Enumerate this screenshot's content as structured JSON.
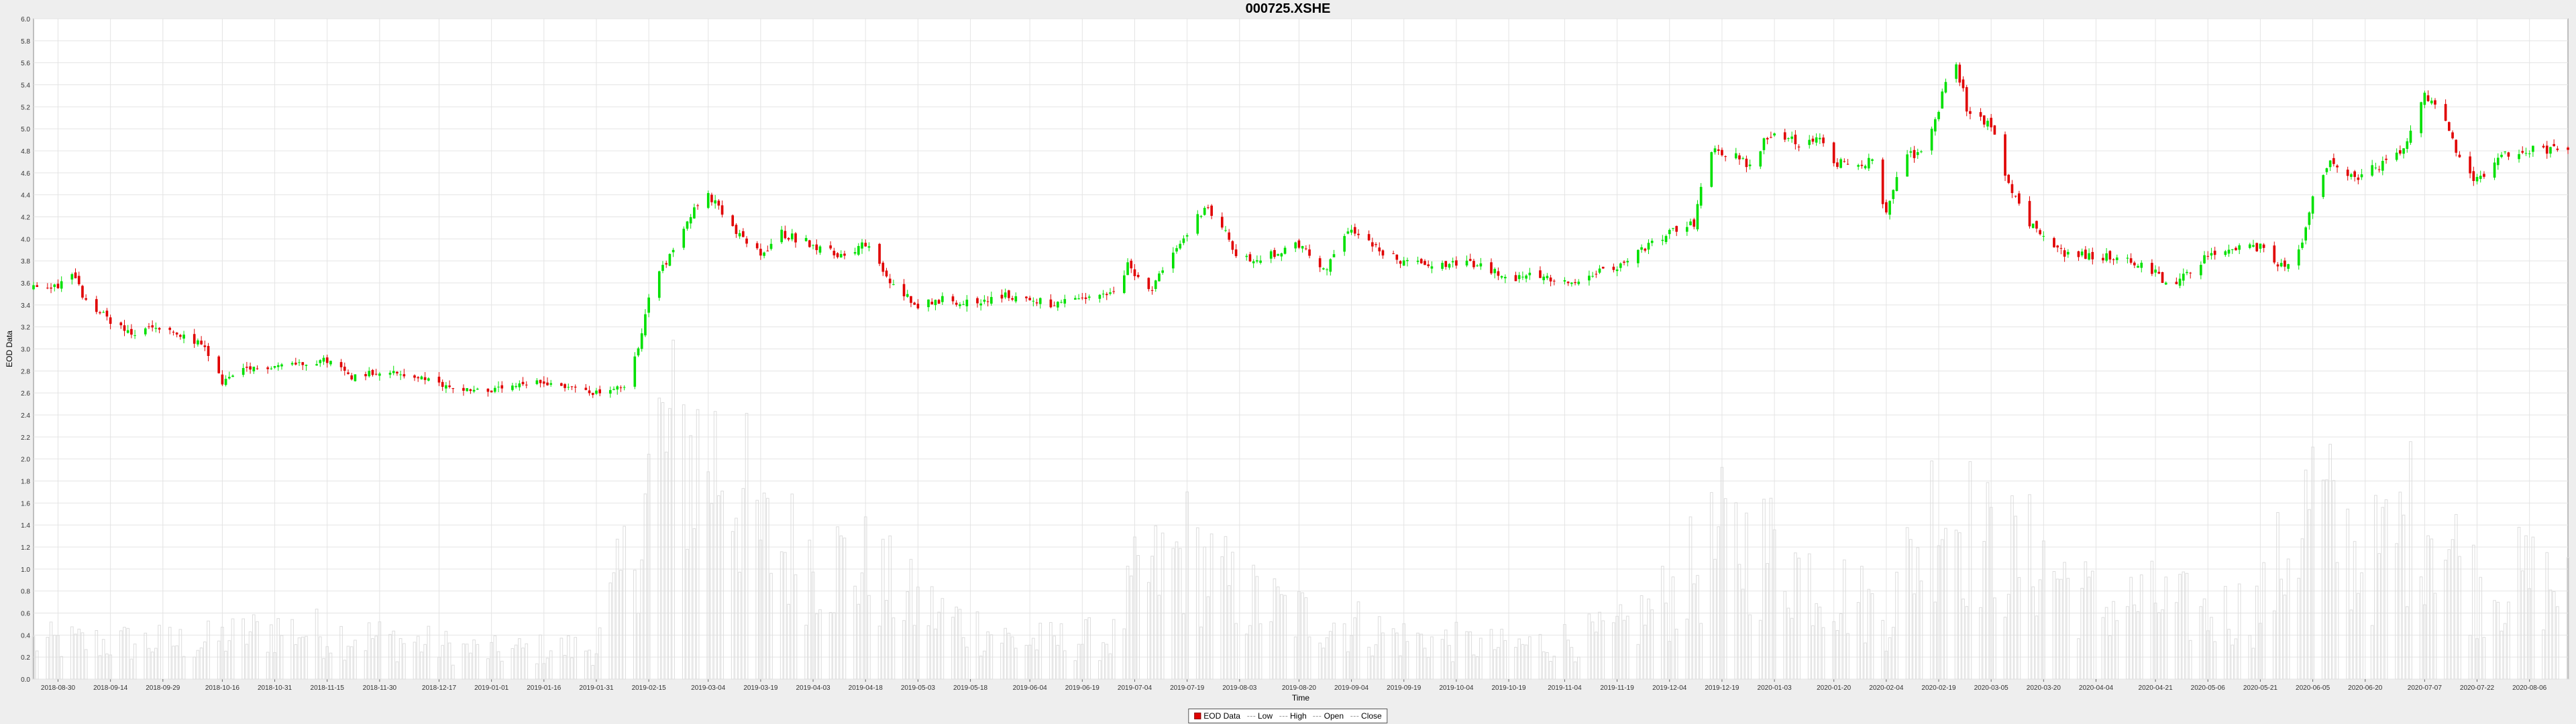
{
  "chart_data": {
    "type": "candlestick",
    "title": "000725.XSHE",
    "xlabel": "Time",
    "ylabel": "EOD Data",
    "ylim": [
      0,
      6.0
    ],
    "yticks": [
      "0.0",
      "0.2",
      "0.4",
      "0.6",
      "0.8",
      "1.0",
      "1.2",
      "1.4",
      "1.6",
      "1.8",
      "2.0",
      "2.2",
      "2.4",
      "2.6",
      "2.8",
      "3.0",
      "3.2",
      "3.4",
      "3.6",
      "3.8",
      "4.0",
      "4.2",
      "4.4",
      "4.6",
      "4.8",
      "5.0",
      "5.2",
      "5.4",
      "5.6",
      "5.8",
      "6.0"
    ],
    "xrange": [
      "2018-08-23",
      "2020-08-17"
    ],
    "xticks": [
      "2018-08-30",
      "2018-09-14",
      "2018-09-29",
      "2018-10-16",
      "2018-10-31",
      "2018-11-15",
      "2018-11-30",
      "2018-12-17",
      "2019-01-01",
      "2019-01-16",
      "2019-01-31",
      "2019-02-15",
      "2019-03-04",
      "2019-03-19",
      "2019-04-03",
      "2019-04-18",
      "2019-05-03",
      "2019-05-18",
      "2019-06-04",
      "2019-06-19",
      "2019-07-04",
      "2019-07-19",
      "2019-08-03",
      "2019-08-20",
      "2019-09-04",
      "2019-09-19",
      "2019-10-04",
      "2019-10-19",
      "2019-11-04",
      "2019-11-19",
      "2019-12-04",
      "2019-12-19",
      "2020-01-03",
      "2020-01-20",
      "2020-02-04",
      "2020-02-19",
      "2020-03-05",
      "2020-03-20",
      "2020-04-04",
      "2020-04-21",
      "2020-05-06",
      "2020-05-21",
      "2020-06-05",
      "2020-06-20",
      "2020-07-07",
      "2020-07-22",
      "2020-08-06"
    ],
    "close_anchors": [
      [
        "2018-08-23",
        3.55
      ],
      [
        "2018-08-30",
        3.58
      ],
      [
        "2018-09-03",
        3.7
      ],
      [
        "2018-09-07",
        3.42
      ],
      [
        "2018-09-14",
        3.26
      ],
      [
        "2018-09-20",
        3.12
      ],
      [
        "2018-09-26",
        3.2
      ],
      [
        "2018-10-10",
        3.05
      ],
      [
        "2018-10-16",
        2.7
      ],
      [
        "2018-10-22",
        2.8
      ],
      [
        "2018-10-31",
        2.85
      ],
      [
        "2018-11-15",
        2.9
      ],
      [
        "2018-11-22",
        2.75
      ],
      [
        "2018-11-30",
        2.8
      ],
      [
        "2018-12-10",
        2.75
      ],
      [
        "2018-12-20",
        2.65
      ],
      [
        "2019-01-01",
        2.62
      ],
      [
        "2019-01-16",
        2.7
      ],
      [
        "2019-01-31",
        2.6
      ],
      [
        "2019-02-08",
        2.65
      ],
      [
        "2019-02-12",
        3.0
      ],
      [
        "2019-02-15",
        3.5
      ],
      [
        "2019-02-21",
        3.85
      ],
      [
        "2019-02-26",
        4.2
      ],
      [
        "2019-03-04",
        4.4
      ],
      [
        "2019-03-12",
        4.05
      ],
      [
        "2019-03-19",
        3.85
      ],
      [
        "2019-03-25",
        4.05
      ],
      [
        "2019-04-03",
        3.95
      ],
      [
        "2019-04-10",
        3.85
      ],
      [
        "2019-04-18",
        3.95
      ],
      [
        "2019-04-25",
        3.6
      ],
      [
        "2019-05-03",
        3.4
      ],
      [
        "2019-05-10",
        3.45
      ],
      [
        "2019-05-18",
        3.42
      ],
      [
        "2019-05-28",
        3.48
      ],
      [
        "2019-06-04",
        3.45
      ],
      [
        "2019-06-11",
        3.4
      ],
      [
        "2019-06-19",
        3.45
      ],
      [
        "2019-06-28",
        3.5
      ],
      [
        "2019-07-02",
        3.75
      ],
      [
        "2019-07-09",
        3.55
      ],
      [
        "2019-07-15",
        3.85
      ],
      [
        "2019-07-19",
        4.05
      ],
      [
        "2019-07-24",
        4.3
      ],
      [
        "2019-07-29",
        4.1
      ],
      [
        "2019-08-03",
        3.8
      ],
      [
        "2019-08-12",
        3.85
      ],
      [
        "2019-08-20",
        3.95
      ],
      [
        "2019-08-27",
        3.7
      ],
      [
        "2019-09-04",
        4.1
      ],
      [
        "2019-09-12",
        3.9
      ],
      [
        "2019-09-19",
        3.78
      ],
      [
        "2019-09-26",
        3.78
      ],
      [
        "2019-10-04",
        3.78
      ],
      [
        "2019-10-12",
        3.75
      ],
      [
        "2019-10-19",
        3.62
      ],
      [
        "2019-10-26",
        3.7
      ],
      [
        "2019-11-04",
        3.6
      ],
      [
        "2019-11-11",
        3.68
      ],
      [
        "2019-11-19",
        3.72
      ],
      [
        "2019-11-26",
        3.9
      ],
      [
        "2019-12-04",
        4.05
      ],
      [
        "2019-12-11",
        4.15
      ],
      [
        "2019-12-15",
        4.8
      ],
      [
        "2019-12-19",
        4.8
      ],
      [
        "2019-12-26",
        4.68
      ],
      [
        "2020-01-03",
        5.0
      ],
      [
        "2020-01-10",
        4.88
      ],
      [
        "2020-01-17",
        4.9
      ],
      [
        "2020-01-20",
        4.7
      ],
      [
        "2020-01-31",
        4.7
      ],
      [
        "2020-02-04",
        4.2
      ],
      [
        "2020-02-08",
        4.7
      ],
      [
        "2020-02-14",
        4.8
      ],
      [
        "2020-02-19",
        5.2
      ],
      [
        "2020-02-23",
        5.75
      ],
      [
        "2020-02-27",
        5.2
      ],
      [
        "2020-03-05",
        5.0
      ],
      [
        "2020-03-10",
        4.5
      ],
      [
        "2020-03-16",
        4.15
      ],
      [
        "2020-03-20",
        4.0
      ],
      [
        "2020-03-27",
        3.85
      ],
      [
        "2020-04-04",
        3.85
      ],
      [
        "2020-04-12",
        3.82
      ],
      [
        "2020-04-21",
        3.7
      ],
      [
        "2020-04-25",
        3.55
      ],
      [
        "2020-05-06",
        3.85
      ],
      [
        "2020-05-13",
        3.9
      ],
      [
        "2020-05-21",
        3.92
      ],
      [
        "2020-05-28",
        3.72
      ],
      [
        "2020-06-02",
        3.95
      ],
      [
        "2020-06-05",
        4.4
      ],
      [
        "2020-06-10",
        4.7
      ],
      [
        "2020-06-16",
        4.55
      ],
      [
        "2020-06-20",
        4.6
      ],
      [
        "2020-06-28",
        4.7
      ],
      [
        "2020-07-02",
        4.85
      ],
      [
        "2020-07-07",
        5.3
      ],
      [
        "2020-07-14",
        5.0
      ],
      [
        "2020-07-18",
        4.6
      ],
      [
        "2020-07-22",
        4.55
      ],
      [
        "2020-07-29",
        4.75
      ],
      [
        "2020-08-06",
        4.8
      ],
      [
        "2020-08-17",
        4.8
      ]
    ],
    "volume_anchors": [
      [
        "2018-08-23",
        0.4
      ],
      [
        "2018-10-10",
        0.4
      ],
      [
        "2018-10-31",
        0.55
      ],
      [
        "2018-11-30",
        0.45
      ],
      [
        "2018-12-31",
        0.3
      ],
      [
        "2019-01-31",
        0.35
      ],
      [
        "2019-02-10",
        1.4
      ],
      [
        "2019-02-18",
        2.55
      ],
      [
        "2019-03-10",
        2.4
      ],
      [
        "2019-03-19",
        1.5
      ],
      [
        "2019-04-18",
        1.2
      ],
      [
        "2019-05-03",
        0.8
      ],
      [
        "2019-06-01",
        0.4
      ],
      [
        "2019-06-28",
        0.45
      ],
      [
        "2019-07-04",
        1.0
      ],
      [
        "2019-07-19",
        1.4
      ],
      [
        "2019-08-03",
        0.9
      ],
      [
        "2019-08-20",
        0.7
      ],
      [
        "2019-09-04",
        0.6
      ],
      [
        "2019-09-19",
        0.45
      ],
      [
        "2019-10-19",
        0.35
      ],
      [
        "2019-11-19",
        0.5
      ],
      [
        "2019-12-04",
        0.9
      ],
      [
        "2019-12-19",
        1.5
      ],
      [
        "2020-01-03",
        1.4
      ],
      [
        "2020-01-20",
        1.0
      ],
      [
        "2020-02-04",
        0.7
      ],
      [
        "2020-02-19",
        2.0
      ],
      [
        "2020-03-05",
        1.4
      ],
      [
        "2020-03-20",
        1.3
      ],
      [
        "2020-04-04",
        0.8
      ],
      [
        "2020-04-21",
        0.85
      ],
      [
        "2020-05-06",
        0.7
      ],
      [
        "2020-05-21",
        0.8
      ],
      [
        "2020-06-05",
        2.0
      ],
      [
        "2020-06-20",
        1.2
      ],
      [
        "2020-07-07",
        1.9
      ],
      [
        "2020-07-22",
        1.0
      ],
      [
        "2020-08-06",
        1.1
      ],
      [
        "2020-08-17",
        1.0
      ]
    ],
    "up_color": "#00e000",
    "down_color": "#e00000",
    "volume_color": "#dddddd",
    "grid": true,
    "legend_position": "bottom-center"
  },
  "legend": {
    "eod_data": "EOD Data",
    "low": "Low",
    "high": "High",
    "open": "Open",
    "close": "Close"
  }
}
